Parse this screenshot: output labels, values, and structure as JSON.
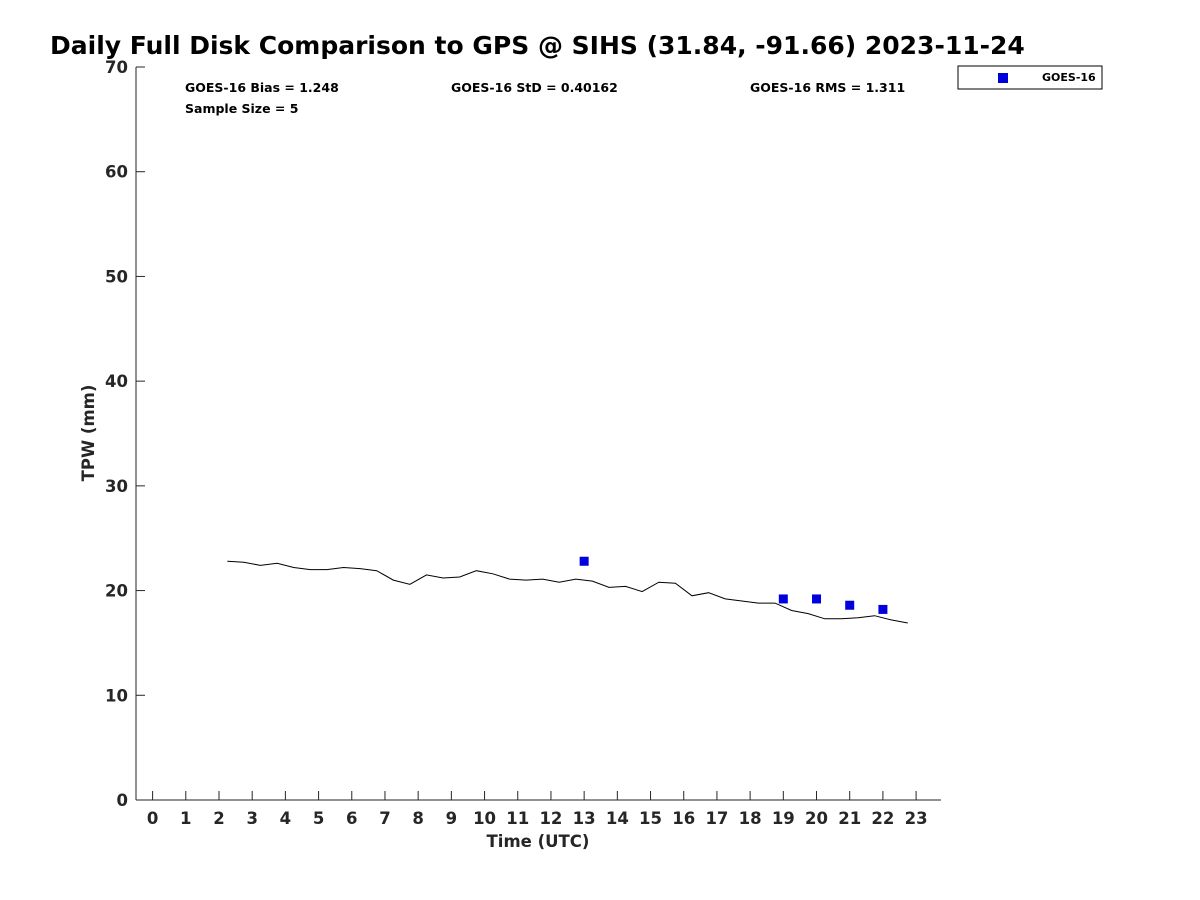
{
  "chart_data": {
    "type": "line",
    "title": "Daily Full Disk Comparison to GPS @ SIHS (31.84, -91.66) 2023-11-24",
    "xlabel": "Time (UTC)",
    "ylabel": "TPW (mm)",
    "xlim": [
      -0.5,
      23.75
    ],
    "ylim": [
      0,
      70
    ],
    "x_ticks": [
      0,
      1,
      2,
      3,
      4,
      5,
      6,
      7,
      8,
      9,
      10,
      11,
      12,
      13,
      14,
      15,
      16,
      17,
      18,
      19,
      20,
      21,
      22,
      23
    ],
    "y_ticks": [
      0,
      10,
      20,
      30,
      40,
      50,
      60,
      70
    ],
    "grid": false,
    "legend_position": "top-right",
    "stats": {
      "bias": "GOES-16 Bias = 1.248",
      "std": "GOES-16 StD = 0.40162",
      "rms": "GOES-16 RMS = 1.311",
      "sample": "Sample Size = 5"
    },
    "gps_line": {
      "color": "#000000",
      "x": [
        2.25,
        2.75,
        3.25,
        3.75,
        4.25,
        4.75,
        5.25,
        5.75,
        6.25,
        6.75,
        7.25,
        7.75,
        8.25,
        8.75,
        9.25,
        9.75,
        10.25,
        10.75,
        11.25,
        11.75,
        12.25,
        12.75,
        13.25,
        13.75,
        14.25,
        14.75,
        15.25,
        15.75,
        16.25,
        16.75,
        17.25,
        17.75,
        18.25,
        18.75,
        19.25,
        19.75,
        20.25,
        20.75,
        21.25,
        21.75,
        22.25,
        22.75
      ],
      "y": [
        22.8,
        22.7,
        22.4,
        22.6,
        22.2,
        22.0,
        22.0,
        22.2,
        22.1,
        21.9,
        21.0,
        20.6,
        21.5,
        21.2,
        21.3,
        21.9,
        21.6,
        21.1,
        21.0,
        21.1,
        20.8,
        21.1,
        20.9,
        20.3,
        20.4,
        19.9,
        20.8,
        20.7,
        19.5,
        19.8,
        19.2,
        19.0,
        18.8,
        18.8,
        18.1,
        17.8,
        17.3,
        17.3,
        17.4,
        17.6,
        17.2,
        16.9
      ]
    },
    "series": [
      {
        "name": "GOES-16",
        "color": "#0000dd",
        "marker": "square",
        "x": [
          13,
          19,
          20,
          21,
          22
        ],
        "y": [
          22.8,
          19.2,
          19.2,
          18.6,
          18.2
        ]
      }
    ]
  }
}
